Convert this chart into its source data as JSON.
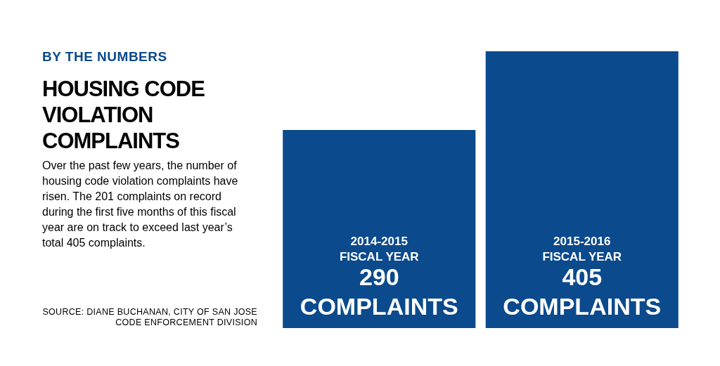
{
  "chart_data": {
    "type": "bar",
    "subtitle": "BY THE NUMBERS",
    "title": "HOUSING CODE VIOLATION COMPLAINTS",
    "annotations": [
      "Over the past few years, the number of housing code violation complaints have risen. The 201 complaints on record during the first five months of this fiscal year are on track to exceed last year’s total 405 complaints.",
      "SOURCE: DIANE BUCHANAN, CITY OF SAN JOSE CODE ENFORCEMENT DIVISION"
    ],
    "categories": [
      "2014-2015 FISCAL YEAR",
      "2015-2016 FISCAL YEAR"
    ],
    "values": [
      290,
      405
    ],
    "value_labels": [
      "290 COMPLAINTS",
      "405 COMPLAINTS"
    ],
    "color": "#0b4a8c",
    "ylim": [
      0,
      405
    ],
    "grid": false
  }
}
